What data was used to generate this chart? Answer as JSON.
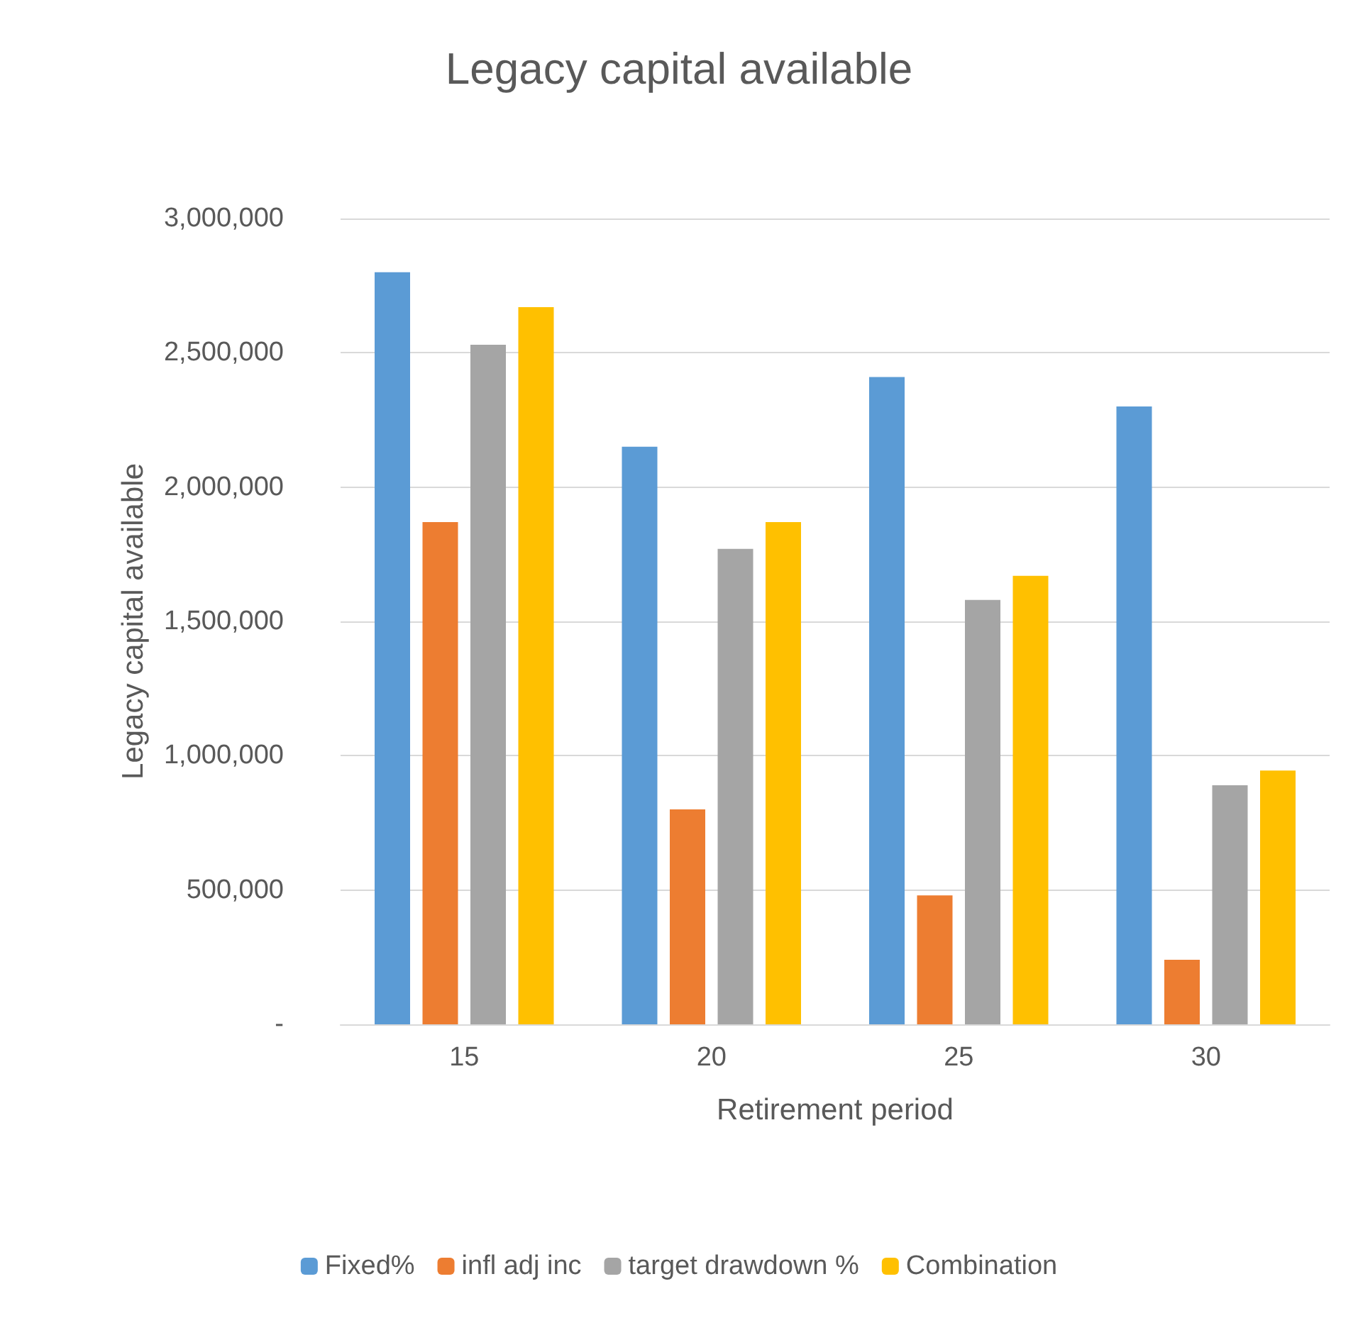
{
  "chart_data": {
    "type": "bar",
    "title": "Legacy capital available",
    "xlabel": "Retirement period",
    "ylabel": "Legacy capital available",
    "categories": [
      "15",
      "20",
      "25",
      "30"
    ],
    "series": [
      {
        "name": "Fixed%",
        "color": "#5b9bd5",
        "values": [
          2800000,
          2150000,
          2410000,
          2300000
        ]
      },
      {
        "name": "infl adj inc",
        "color": "#ed7d31",
        "values": [
          1870000,
          800000,
          480000,
          240000
        ]
      },
      {
        "name": "target drawdown %",
        "color": "#a5a5a5",
        "values": [
          2530000,
          1770000,
          1580000,
          890000
        ]
      },
      {
        "name": "Combination",
        "color": "#ffc000",
        "values": [
          2670000,
          1870000,
          1670000,
          945000
        ]
      }
    ],
    "ylim": [
      0,
      3000000
    ],
    "yticks": [
      {
        "value": 0,
        "label": "-"
      },
      {
        "value": 500000,
        "label": "500,000"
      },
      {
        "value": 1000000,
        "label": "1,000,000"
      },
      {
        "value": 1500000,
        "label": "1,500,000"
      },
      {
        "value": 2000000,
        "label": "2,000,000"
      },
      {
        "value": 2500000,
        "label": "2,500,000"
      },
      {
        "value": 3000000,
        "label": "3,000,000"
      }
    ],
    "grid": "y",
    "legend": "bottom"
  }
}
